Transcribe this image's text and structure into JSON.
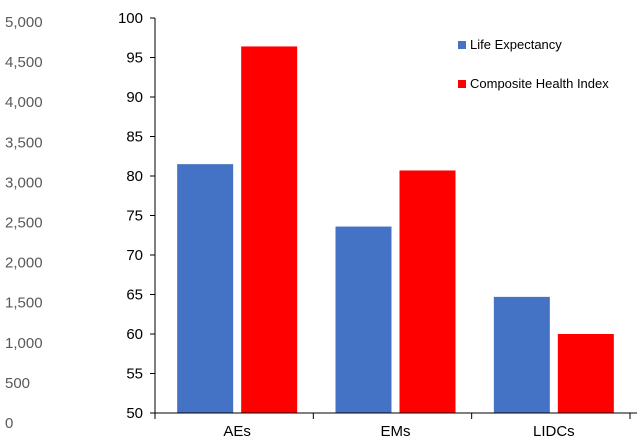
{
  "chart_data": {
    "type": "bar",
    "categories": [
      "AEs",
      "EMs",
      "LIDCs"
    ],
    "series": [
      {
        "name": "Life Expectancy",
        "color": "#4472C4",
        "values": [
          81.5,
          73.6,
          64.7
        ]
      },
      {
        "name": "Composite Health Index",
        "color": "#FF0000",
        "values": [
          96.4,
          80.7,
          60.0
        ]
      }
    ],
    "ylim": [
      50,
      100
    ],
    "yticks": [
      "50",
      "55",
      "60",
      "65",
      "70",
      "75",
      "80",
      "85",
      "90",
      "95",
      "100"
    ],
    "secondary_axis": {
      "ylim": [
        0,
        5000
      ],
      "ticks": [
        "0",
        "500",
        "1,000",
        "1,500",
        "2,000",
        "2,500",
        "3,000",
        "3,500",
        "4,000",
        "4,500",
        "5,000"
      ]
    },
    "legend_position": "top-right",
    "grid": false
  }
}
